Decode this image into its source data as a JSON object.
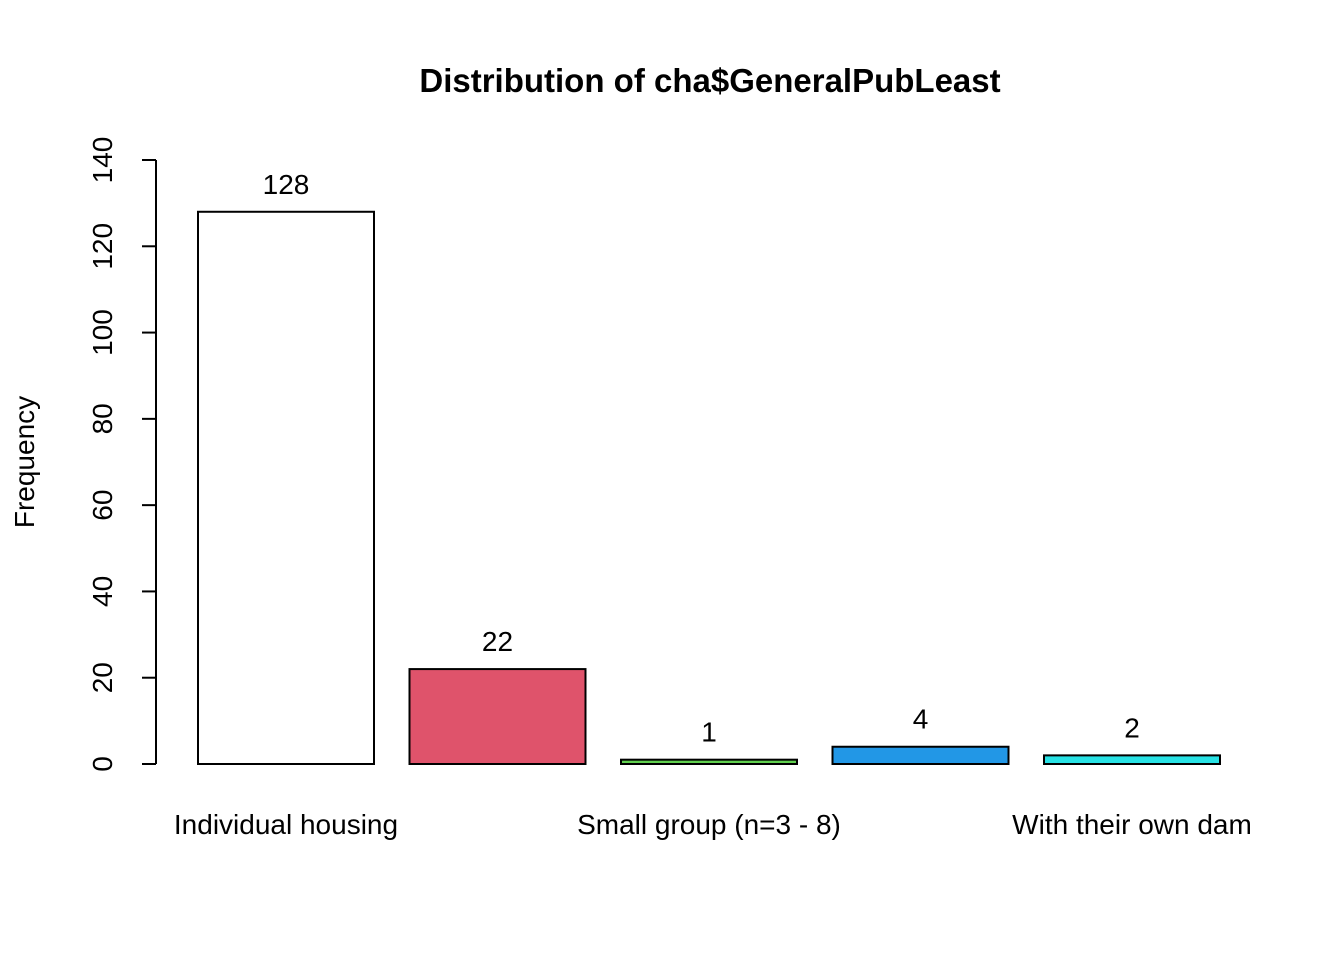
{
  "chart_data": {
    "type": "bar",
    "title": "Distribution of cha$GeneralPubLeast",
    "xlabel": "",
    "ylabel": "Frequency",
    "ylim": [
      0,
      140
    ],
    "yticks": [
      0,
      20,
      40,
      60,
      80,
      100,
      120,
      140
    ],
    "categories": [
      "Individual housing",
      "",
      "Small group (n=3 - 8)",
      "",
      "With their own dam"
    ],
    "values": [
      128,
      22,
      1,
      4,
      2
    ],
    "data_labels": [
      "128",
      "22",
      "1",
      "4",
      "2"
    ],
    "colors": [
      "#ffffff",
      "#df536b",
      "#61d04f",
      "#2297e6",
      "#28e2e5"
    ],
    "grid": false,
    "legend": "none"
  }
}
